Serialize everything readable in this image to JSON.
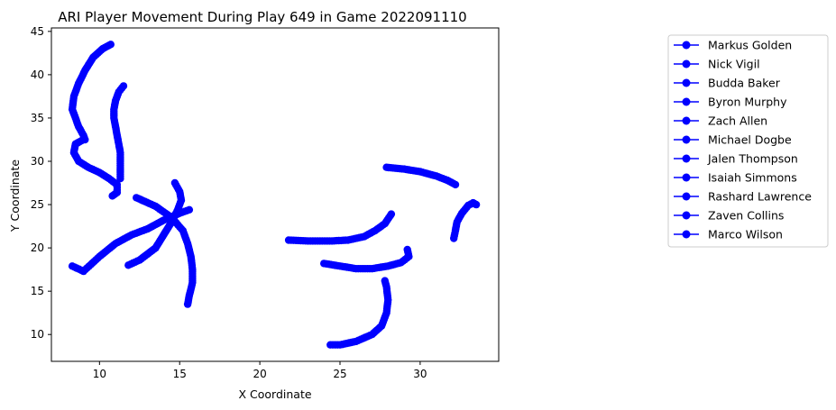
{
  "chart_data": {
    "type": "scatter",
    "title": "ARI Player Movement During Play 649 in Game 2022091110",
    "xlabel": "X Coordinate",
    "ylabel": "Y Coordinate",
    "xlim": [
      7.0,
      34.9
    ],
    "ylim": [
      6.9,
      45.4
    ],
    "xticks": [
      10,
      15,
      20,
      25,
      30
    ],
    "yticks": [
      10,
      15,
      20,
      25,
      30,
      35,
      40,
      45
    ],
    "grid": false,
    "legend_position": "outside-right",
    "marker": "circle-with-line",
    "series_color": "#0000ff",
    "series": [
      {
        "name": "Markus Golden",
        "points": [
          [
            10.7,
            43.5
          ],
          [
            10.2,
            43.0
          ],
          [
            9.6,
            42.0
          ],
          [
            9.1,
            40.5
          ],
          [
            8.7,
            39.0
          ],
          [
            8.4,
            37.5
          ],
          [
            8.3,
            36.0
          ],
          [
            8.5,
            35.0
          ],
          [
            8.7,
            34.0
          ],
          [
            9.0,
            33.0
          ],
          [
            9.1,
            32.5
          ]
        ]
      },
      {
        "name": "Nick Vigil",
        "points": [
          [
            11.5,
            38.7
          ],
          [
            11.2,
            38.0
          ],
          [
            11.0,
            37.0
          ],
          [
            10.9,
            36.0
          ],
          [
            10.9,
            35.0
          ],
          [
            11.0,
            34.0
          ],
          [
            11.1,
            33.0
          ],
          [
            11.2,
            32.0
          ],
          [
            11.3,
            31.0
          ],
          [
            11.3,
            30.0
          ],
          [
            11.3,
            29.0
          ],
          [
            11.3,
            28.0
          ]
        ]
      },
      {
        "name": "Budda Baker",
        "points": [
          [
            9.0,
            32.5
          ],
          [
            8.5,
            32.0
          ],
          [
            8.4,
            31.0
          ],
          [
            8.7,
            30.0
          ],
          [
            9.3,
            29.3
          ],
          [
            10.0,
            28.7
          ],
          [
            10.6,
            28.0
          ],
          [
            11.1,
            27.3
          ],
          [
            11.1,
            26.4
          ],
          [
            10.8,
            26.0
          ]
        ]
      },
      {
        "name": "Byron Murphy",
        "points": [
          [
            15.6,
            24.4
          ],
          [
            15.0,
            24.0
          ],
          [
            14.0,
            23.2
          ],
          [
            13.0,
            22.2
          ],
          [
            12.0,
            21.5
          ],
          [
            11.0,
            20.5
          ],
          [
            10.0,
            19.0
          ],
          [
            9.0,
            17.3
          ],
          [
            8.3,
            17.9
          ]
        ]
      },
      {
        "name": "Zach Allen",
        "points": [
          [
            12.3,
            25.8
          ],
          [
            13.5,
            24.8
          ],
          [
            14.5,
            23.5
          ],
          [
            15.2,
            22.0
          ],
          [
            15.5,
            20.5
          ],
          [
            15.7,
            19.0
          ],
          [
            15.8,
            17.5
          ],
          [
            15.8,
            16.0
          ],
          [
            15.6,
            14.5
          ],
          [
            15.5,
            13.5
          ]
        ]
      },
      {
        "name": "Michael Dogbe",
        "points": [
          [
            14.7,
            27.5
          ],
          [
            15.0,
            26.5
          ],
          [
            15.1,
            25.5
          ],
          [
            14.9,
            24.5
          ],
          [
            14.5,
            23.0
          ],
          [
            14.0,
            21.5
          ],
          [
            13.5,
            20.0
          ],
          [
            12.5,
            18.6
          ],
          [
            11.8,
            18.0
          ]
        ]
      },
      {
        "name": "Jalen Thompson",
        "points": [
          [
            21.8,
            20.9
          ],
          [
            23.0,
            20.8
          ],
          [
            24.5,
            20.8
          ],
          [
            25.5,
            20.9
          ],
          [
            26.5,
            21.3
          ],
          [
            27.2,
            22.0
          ],
          [
            27.8,
            22.8
          ],
          [
            28.2,
            23.9
          ]
        ]
      },
      {
        "name": "Isaiah Simmons",
        "points": [
          [
            24.0,
            18.2
          ],
          [
            25.0,
            17.9
          ],
          [
            26.0,
            17.6
          ],
          [
            27.0,
            17.6
          ],
          [
            28.0,
            17.9
          ],
          [
            28.8,
            18.3
          ],
          [
            29.3,
            19.0
          ],
          [
            29.2,
            19.8
          ]
        ]
      },
      {
        "name": "Rashard Lawrence",
        "points": [
          [
            24.4,
            8.8
          ],
          [
            25.0,
            8.8
          ],
          [
            26.0,
            9.2
          ],
          [
            27.0,
            10.0
          ],
          [
            27.6,
            11.0
          ],
          [
            27.9,
            12.5
          ],
          [
            28.0,
            14.0
          ],
          [
            27.9,
            15.5
          ],
          [
            27.8,
            16.2
          ]
        ]
      },
      {
        "name": "Zaven Collins",
        "points": [
          [
            27.9,
            29.3
          ],
          [
            29.0,
            29.1
          ],
          [
            30.0,
            28.8
          ],
          [
            31.0,
            28.3
          ],
          [
            31.7,
            27.8
          ],
          [
            32.2,
            27.3
          ]
        ]
      },
      {
        "name": "Marco Wilson",
        "points": [
          [
            33.5,
            25.0
          ],
          [
            33.3,
            25.2
          ],
          [
            33.0,
            24.9
          ],
          [
            32.6,
            24.0
          ],
          [
            32.3,
            23.0
          ],
          [
            32.2,
            22.0
          ],
          [
            32.1,
            21.1
          ]
        ]
      }
    ]
  }
}
